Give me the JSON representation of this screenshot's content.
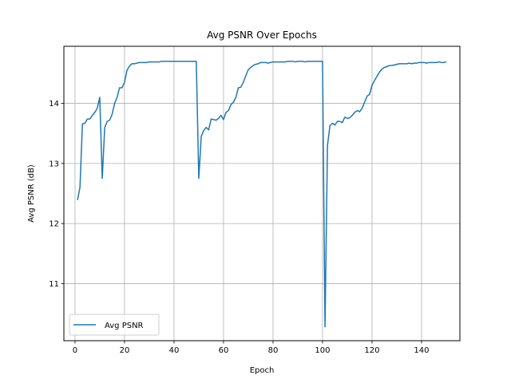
{
  "chart_data": {
    "type": "line",
    "title": "Avg PSNR Over Epochs",
    "xlabel": "Epoch",
    "ylabel": "Avg PSNR (dB)",
    "xlim": [
      -4.5,
      155.5
    ],
    "ylim": [
      10.05,
      14.95
    ],
    "xticks": [
      0,
      20,
      40,
      60,
      80,
      100,
      120,
      140
    ],
    "yticks": [
      11,
      12,
      13,
      14
    ],
    "grid": true,
    "legend": "lower-left",
    "line_color": "#1f77b4",
    "series": [
      {
        "name": "Avg PSNR",
        "x": [
          1,
          2,
          3,
          4,
          5,
          6,
          7,
          8,
          9,
          10,
          11,
          12,
          13,
          14,
          15,
          16,
          17,
          18,
          19,
          20,
          21,
          22,
          23,
          24,
          25,
          26,
          27,
          28,
          29,
          30,
          31,
          32,
          33,
          34,
          35,
          36,
          37,
          38,
          39,
          40,
          41,
          42,
          43,
          44,
          45,
          46,
          47,
          48,
          49,
          50,
          51,
          52,
          53,
          54,
          55,
          56,
          57,
          58,
          59,
          60,
          61,
          62,
          63,
          64,
          65,
          66,
          67,
          68,
          69,
          70,
          71,
          72,
          73,
          74,
          75,
          76,
          77,
          78,
          79,
          80,
          81,
          82,
          83,
          84,
          85,
          86,
          87,
          88,
          89,
          90,
          91,
          92,
          93,
          94,
          95,
          96,
          97,
          98,
          99,
          100,
          101,
          102,
          103,
          104,
          105,
          106,
          107,
          108,
          109,
          110,
          111,
          112,
          113,
          114,
          115,
          116,
          117,
          118,
          119,
          120,
          121,
          122,
          123,
          124,
          125,
          126,
          127,
          128,
          129,
          130,
          131,
          132,
          133,
          134,
          135,
          136,
          137,
          138,
          139,
          140,
          141,
          142,
          143,
          144,
          145,
          146,
          147,
          148,
          149,
          150
        ],
        "values": [
          12.39,
          12.6,
          13.66,
          13.67,
          13.74,
          13.74,
          13.8,
          13.85,
          13.92,
          14.1,
          12.75,
          13.6,
          13.7,
          13.72,
          13.82,
          14.0,
          14.1,
          14.26,
          14.26,
          14.35,
          14.55,
          14.62,
          14.66,
          14.66,
          14.67,
          14.68,
          14.68,
          14.68,
          14.68,
          14.69,
          14.69,
          14.69,
          14.69,
          14.69,
          14.7,
          14.7,
          14.7,
          14.7,
          14.7,
          14.7,
          14.7,
          14.7,
          14.7,
          14.7,
          14.7,
          14.7,
          14.7,
          14.7,
          14.7,
          12.75,
          13.45,
          13.55,
          13.6,
          13.56,
          13.74,
          13.73,
          13.72,
          13.75,
          13.8,
          13.73,
          13.85,
          13.88,
          13.98,
          14.02,
          14.1,
          14.26,
          14.27,
          14.35,
          14.46,
          14.56,
          14.6,
          14.63,
          14.65,
          14.66,
          14.68,
          14.68,
          14.68,
          14.67,
          14.68,
          14.69,
          14.69,
          14.69,
          14.69,
          14.69,
          14.69,
          14.7,
          14.7,
          14.7,
          14.69,
          14.7,
          14.7,
          14.7,
          14.69,
          14.7,
          14.7,
          14.7,
          14.7,
          14.7,
          14.7,
          14.7,
          10.28,
          13.3,
          13.63,
          13.67,
          13.64,
          13.7,
          13.7,
          13.68,
          13.77,
          13.75,
          13.76,
          13.8,
          13.85,
          13.88,
          13.86,
          13.92,
          14.02,
          14.12,
          14.15,
          14.3,
          14.38,
          14.45,
          14.52,
          14.57,
          14.6,
          14.61,
          14.63,
          14.63,
          14.64,
          14.65,
          14.66,
          14.66,
          14.66,
          14.66,
          14.67,
          14.66,
          14.67,
          14.67,
          14.68,
          14.68,
          14.68,
          14.67,
          14.68,
          14.68,
          14.68,
          14.68,
          14.69,
          14.68,
          14.68,
          14.69
        ]
      }
    ]
  }
}
